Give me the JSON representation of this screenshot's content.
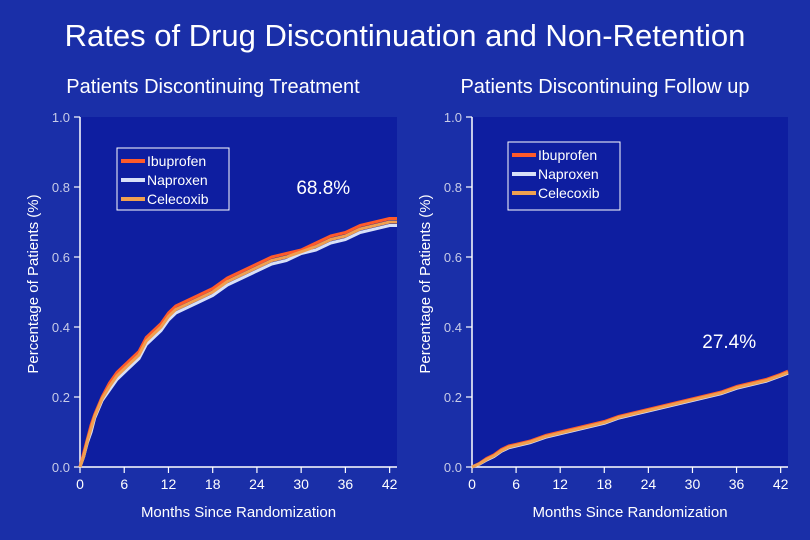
{
  "slide": {
    "title": "Rates of Drug Discontinuation and Non-Retention"
  },
  "colors": {
    "background": "#1a2fa8",
    "plot_background": "#0e1ea0",
    "text": "#ffffff",
    "axis": "#ffffff",
    "tick_label": "#c8cce8",
    "ibuprofen": "#ff5a2a",
    "naproxen": "#d8e0f8",
    "celecoxib": "#f0a050"
  },
  "chart_data": [
    {
      "type": "line",
      "title": "Patients Discontinuing Treatment",
      "xlabel": "Months Since Randomization",
      "ylabel": "Percentage of Patients (%)",
      "xlim": [
        0,
        43
      ],
      "ylim": [
        0,
        1.0
      ],
      "xticks": [
        0,
        6,
        12,
        18,
        24,
        30,
        36,
        42
      ],
      "yticks": [
        "0.0",
        "0.2",
        "0.4",
        "0.6",
        "0.8",
        "1.0"
      ],
      "legend_position": "top-left",
      "annotation": {
        "text": "68.8%",
        "x": 33,
        "y": 0.78
      },
      "series": [
        {
          "name": "Ibuprofen",
          "x": [
            0,
            0.5,
            1,
            1.5,
            2,
            3,
            4,
            5,
            6,
            7,
            8,
            9,
            10,
            11,
            12,
            13,
            14,
            15,
            16,
            17,
            18,
            20,
            22,
            24,
            26,
            28,
            30,
            32,
            34,
            36,
            38,
            40,
            42,
            43
          ],
          "y": [
            0.0,
            0.04,
            0.08,
            0.12,
            0.15,
            0.2,
            0.24,
            0.27,
            0.29,
            0.31,
            0.33,
            0.37,
            0.39,
            0.41,
            0.44,
            0.46,
            0.47,
            0.48,
            0.49,
            0.5,
            0.51,
            0.54,
            0.56,
            0.58,
            0.6,
            0.61,
            0.62,
            0.64,
            0.66,
            0.67,
            0.69,
            0.7,
            0.71,
            0.71
          ]
        },
        {
          "name": "Naproxen",
          "x": [
            0,
            0.5,
            1,
            1.5,
            2,
            3,
            4,
            5,
            6,
            7,
            8,
            9,
            10,
            11,
            12,
            13,
            14,
            15,
            16,
            17,
            18,
            20,
            22,
            24,
            26,
            28,
            30,
            32,
            34,
            36,
            38,
            40,
            42,
            43
          ],
          "y": [
            0.0,
            0.03,
            0.07,
            0.1,
            0.14,
            0.19,
            0.22,
            0.25,
            0.27,
            0.29,
            0.31,
            0.35,
            0.37,
            0.39,
            0.42,
            0.44,
            0.45,
            0.46,
            0.47,
            0.48,
            0.49,
            0.52,
            0.54,
            0.56,
            0.58,
            0.59,
            0.61,
            0.62,
            0.64,
            0.65,
            0.67,
            0.68,
            0.69,
            0.69
          ]
        },
        {
          "name": "Celecoxib",
          "x": [
            0,
            0.5,
            1,
            1.5,
            2,
            3,
            4,
            5,
            6,
            7,
            8,
            9,
            10,
            11,
            12,
            13,
            14,
            15,
            16,
            17,
            18,
            20,
            22,
            24,
            26,
            28,
            30,
            32,
            34,
            36,
            38,
            40,
            42,
            43
          ],
          "y": [
            0.0,
            0.03,
            0.075,
            0.11,
            0.145,
            0.195,
            0.23,
            0.26,
            0.28,
            0.3,
            0.32,
            0.36,
            0.38,
            0.4,
            0.43,
            0.45,
            0.46,
            0.47,
            0.48,
            0.49,
            0.5,
            0.53,
            0.55,
            0.57,
            0.59,
            0.6,
            0.615,
            0.63,
            0.65,
            0.66,
            0.68,
            0.69,
            0.7,
            0.7
          ]
        }
      ]
    },
    {
      "type": "line",
      "title": "Patients Discontinuing Follow up",
      "xlabel": "Months Since Randomization",
      "ylabel": "Percentage of Patients (%)",
      "xlim": [
        0,
        43
      ],
      "ylim": [
        0,
        1.0
      ],
      "xticks": [
        0,
        6,
        12,
        18,
        24,
        30,
        36,
        42
      ],
      "yticks": [
        "0.0",
        "0.2",
        "0.4",
        "0.6",
        "0.8",
        "1.0"
      ],
      "legend_position": "top-left",
      "annotation": {
        "text": "27.4%",
        "x": 35,
        "y": 0.34
      },
      "series": [
        {
          "name": "Ibuprofen",
          "x": [
            0,
            1,
            2,
            3,
            4,
            5,
            6,
            8,
            10,
            12,
            14,
            16,
            18,
            20,
            22,
            24,
            26,
            28,
            30,
            32,
            34,
            36,
            38,
            40,
            42,
            43
          ],
          "y": [
            0.0,
            0.01,
            0.025,
            0.035,
            0.05,
            0.06,
            0.065,
            0.075,
            0.09,
            0.1,
            0.11,
            0.12,
            0.13,
            0.145,
            0.155,
            0.165,
            0.175,
            0.185,
            0.195,
            0.205,
            0.215,
            0.23,
            0.24,
            0.25,
            0.265,
            0.274
          ]
        },
        {
          "name": "Naproxen",
          "x": [
            0,
            1,
            2,
            3,
            4,
            5,
            6,
            8,
            10,
            12,
            14,
            16,
            18,
            20,
            22,
            24,
            26,
            28,
            30,
            32,
            34,
            36,
            38,
            40,
            42,
            43
          ],
          "y": [
            0.0,
            0.008,
            0.02,
            0.03,
            0.045,
            0.055,
            0.06,
            0.07,
            0.085,
            0.095,
            0.105,
            0.115,
            0.125,
            0.14,
            0.15,
            0.16,
            0.17,
            0.18,
            0.19,
            0.2,
            0.21,
            0.225,
            0.235,
            0.245,
            0.26,
            0.268
          ]
        },
        {
          "name": "Celecoxib",
          "x": [
            0,
            1,
            2,
            3,
            4,
            5,
            6,
            8,
            10,
            12,
            14,
            16,
            18,
            20,
            22,
            24,
            26,
            28,
            30,
            32,
            34,
            36,
            38,
            40,
            42,
            43
          ],
          "y": [
            0.0,
            0.009,
            0.022,
            0.032,
            0.047,
            0.057,
            0.062,
            0.072,
            0.087,
            0.097,
            0.107,
            0.117,
            0.127,
            0.142,
            0.152,
            0.162,
            0.172,
            0.182,
            0.192,
            0.202,
            0.212,
            0.227,
            0.237,
            0.247,
            0.262,
            0.27
          ]
        }
      ]
    }
  ]
}
